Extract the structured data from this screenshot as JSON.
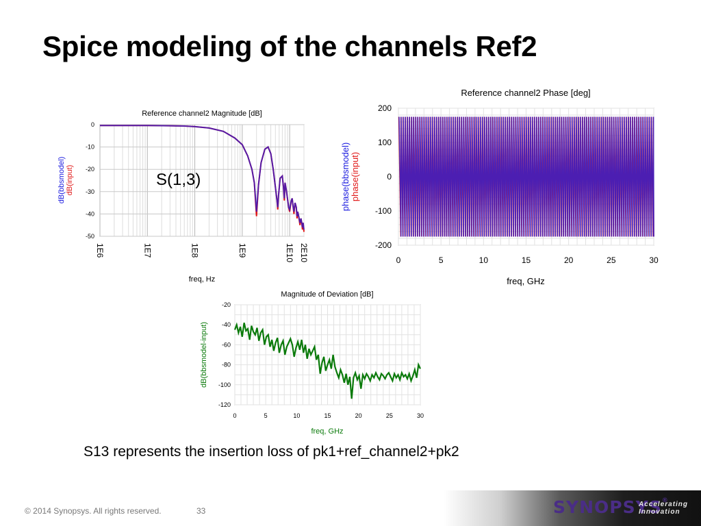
{
  "slide": {
    "title": "Spice modeling of the channels Ref2",
    "caption": "S13 represents the insertion loss of pk1+ref_channel2+pk2",
    "footer": "© 2014 Synopsys. All rights reserved.",
    "page_number": "33",
    "logo_text": "SYNOPSYS",
    "logo_mark": "®",
    "tagline_1": "Accelerating",
    "tagline_2": "Innovation"
  },
  "chart_data": [
    {
      "type": "line",
      "title": "Reference channel2 Magnitude [dB]",
      "xlabel": "freq, Hz",
      "ylabel_series": [
        {
          "text": "dB(bbsmodel)",
          "color": "#1a1adf"
        },
        {
          "text": "dB(input)",
          "color": "#e01818"
        }
      ],
      "annotation": "S(1,3)",
      "x_scale": "log",
      "xlim": [
        1000000,
        20000000000
      ],
      "ylim": [
        -50,
        0
      ],
      "x_ticks": [
        {
          "v": 1000000,
          "label": "1E6"
        },
        {
          "v": 10000000,
          "label": "1E7"
        },
        {
          "v": 100000000,
          "label": "1E8"
        },
        {
          "v": 1000000000,
          "label": "1E9"
        },
        {
          "v": 10000000000,
          "label": "1E10"
        },
        {
          "v": 20000000000,
          "label": "2E10"
        }
      ],
      "y_ticks": [
        0,
        -10,
        -20,
        -30,
        -40,
        -50
      ],
      "grid": true,
      "series": [
        {
          "name": "dB(input)",
          "color": "#e01818",
          "x": [
            1000000,
            10000000,
            30000000,
            60000000,
            100000000,
            200000000,
            400000000,
            700000000,
            1000000000,
            1300000000,
            1600000000,
            1800000000,
            2000000000,
            2200000000,
            2500000000,
            3000000000,
            3500000000,
            4000000000,
            4500000000,
            5000000000,
            5400000000,
            5600000000,
            5800000000,
            6300000000,
            7000000000,
            7400000000,
            7700000000,
            8000000000,
            8600000000,
            9500000000,
            10000000000,
            10800000000,
            11300000000,
            11700000000,
            12300000000,
            13000000000,
            13800000000,
            14300000000,
            14800000000,
            15500000000,
            16500000000,
            17300000000,
            18000000000,
            18600000000,
            19200000000,
            20000000000
          ],
          "y": [
            -0.4,
            -0.4,
            -0.5,
            -0.6,
            -0.9,
            -1.5,
            -3.0,
            -6.0,
            -9.0,
            -14.0,
            -20.0,
            -26.0,
            -41.0,
            -27.0,
            -17.0,
            -11.0,
            -10.0,
            -13.0,
            -20.0,
            -28.0,
            -34.0,
            -38.0,
            -32.0,
            -24.0,
            -23.0,
            -28.0,
            -34.0,
            -26.0,
            -30.0,
            -37.0,
            -39.0,
            -34.0,
            -33.0,
            -36.0,
            -40.0,
            -35.0,
            -37.0,
            -42.0,
            -39.0,
            -41.0,
            -45.0,
            -42.0,
            -44.0,
            -47.0,
            -44.0,
            -48.0
          ]
        },
        {
          "name": "dB(bbsmodel)",
          "color": "#1a1adf",
          "x": [
            1000000,
            10000000,
            30000000,
            60000000,
            100000000,
            200000000,
            400000000,
            700000000,
            1000000000,
            1300000000,
            1600000000,
            1800000000,
            2000000000,
            2200000000,
            2500000000,
            3000000000,
            3500000000,
            4000000000,
            4500000000,
            5000000000,
            5400000000,
            5600000000,
            5800000000,
            6300000000,
            7000000000,
            7400000000,
            7700000000,
            8000000000,
            8600000000,
            9500000000,
            10000000000,
            10800000000,
            11300000000,
            11700000000,
            12300000000,
            13000000000,
            13800000000,
            14300000000,
            14800000000,
            15500000000,
            16500000000,
            17300000000,
            18000000000,
            18600000000,
            19200000000,
            20000000000
          ],
          "y": [
            -0.4,
            -0.4,
            -0.5,
            -0.6,
            -0.9,
            -1.5,
            -3.0,
            -6.0,
            -9.0,
            -14.0,
            -20.0,
            -26.0,
            -39.0,
            -27.0,
            -17.0,
            -11.0,
            -10.0,
            -13.0,
            -20.0,
            -28.0,
            -34.0,
            -37.0,
            -32.0,
            -24.0,
            -23.0,
            -28.0,
            -33.0,
            -26.0,
            -30.0,
            -37.0,
            -38.0,
            -34.0,
            -33.0,
            -36.0,
            -39.0,
            -35.0,
            -37.0,
            -41.0,
            -39.0,
            -41.0,
            -44.0,
            -42.0,
            -44.0,
            -46.0,
            -44.0,
            -47.0
          ]
        }
      ]
    },
    {
      "type": "line",
      "title": "Reference channel2 Phase [deg]",
      "xlabel": "freq, GHz",
      "ylabel_series": [
        {
          "text": "phase(bbsmodel)",
          "color": "#1a1adf"
        },
        {
          "text": "phase(input)",
          "color": "#e01818"
        }
      ],
      "xlim": [
        0,
        30
      ],
      "ylim": [
        -200,
        200
      ],
      "x_ticks": [
        0,
        5,
        10,
        15,
        20,
        25,
        30
      ],
      "y_ticks": [
        200,
        100,
        0,
        -100,
        -200
      ],
      "grid": true,
      "wrap_period_ghz": 0.245,
      "amplitude_deg": 175,
      "series": [
        {
          "name": "phase(input)",
          "color": "#e01818"
        },
        {
          "name": "phase(bbsmodel)",
          "color": "#1a1adf"
        }
      ]
    },
    {
      "type": "line",
      "title": "Magnitude of Deviation [dB]",
      "xlabel": "freq, GHz",
      "ylabel_series": [
        {
          "text": "dB(bbsmodel-input)",
          "color": "#0a7a0a"
        }
      ],
      "xlim": [
        0,
        30
      ],
      "ylim": [
        -120,
        -20
      ],
      "x_ticks": [
        0,
        5,
        10,
        15,
        20,
        25,
        30
      ],
      "y_ticks": [
        -20,
        -40,
        -60,
        -80,
        -100,
        -120
      ],
      "grid": true,
      "series": [
        {
          "name": "dB(bbsmodel-input)",
          "color": "#0a7a0a",
          "x": [
            0,
            0.3,
            0.6,
            0.9,
            1.2,
            1.5,
            1.8,
            2.1,
            2.4,
            2.7,
            3.0,
            3.3,
            3.6,
            3.9,
            4.2,
            4.5,
            4.8,
            5.1,
            5.4,
            5.7,
            6.0,
            6.3,
            6.6,
            6.9,
            7.2,
            7.5,
            7.8,
            8.1,
            8.4,
            8.7,
            9.0,
            9.3,
            9.6,
            9.9,
            10.2,
            10.5,
            10.8,
            11.1,
            11.4,
            11.7,
            12.0,
            12.3,
            12.6,
            12.9,
            13.2,
            13.5,
            13.8,
            14.1,
            14.4,
            14.7,
            15.0,
            15.3,
            15.6,
            15.9,
            16.2,
            16.5,
            16.8,
            17.1,
            17.4,
            17.7,
            18.0,
            18.3,
            18.6,
            18.9,
            19.2,
            19.5,
            19.8,
            20.1,
            20.4,
            20.7,
            21.0,
            21.3,
            21.6,
            21.9,
            22.2,
            22.5,
            22.8,
            23.1,
            23.4,
            23.7,
            24.0,
            24.3,
            24.6,
            24.9,
            25.2,
            25.5,
            25.8,
            26.1,
            26.4,
            26.7,
            27.0,
            27.3,
            27.6,
            27.9,
            28.2,
            28.5,
            28.8,
            29.1,
            29.4,
            29.7,
            30.0
          ],
          "y": [
            -45,
            -40,
            -48,
            -42,
            -52,
            -38,
            -46,
            -44,
            -55,
            -41,
            -47,
            -50,
            -43,
            -56,
            -48,
            -45,
            -60,
            -52,
            -50,
            -62,
            -55,
            -66,
            -58,
            -53,
            -68,
            -60,
            -56,
            -70,
            -62,
            -58,
            -54,
            -60,
            -72,
            -63,
            -57,
            -65,
            -55,
            -68,
            -60,
            -74,
            -64,
            -70,
            -66,
            -62,
            -75,
            -70,
            -89,
            -78,
            -72,
            -86,
            -80,
            -75,
            -84,
            -70,
            -82,
            -88,
            -93,
            -85,
            -90,
            -98,
            -89,
            -100,
            -92,
            -114,
            -93,
            -88,
            -95,
            -91,
            -104,
            -90,
            -94,
            -89,
            -92,
            -96,
            -90,
            -93,
            -88,
            -92,
            -95,
            -89,
            -91,
            -94,
            -90,
            -88,
            -92,
            -96,
            -89,
            -93,
            -90,
            -95,
            -88,
            -92,
            -90,
            -94,
            -89,
            -96,
            -91,
            -85,
            -93,
            -80,
            -84
          ]
        }
      ]
    }
  ]
}
